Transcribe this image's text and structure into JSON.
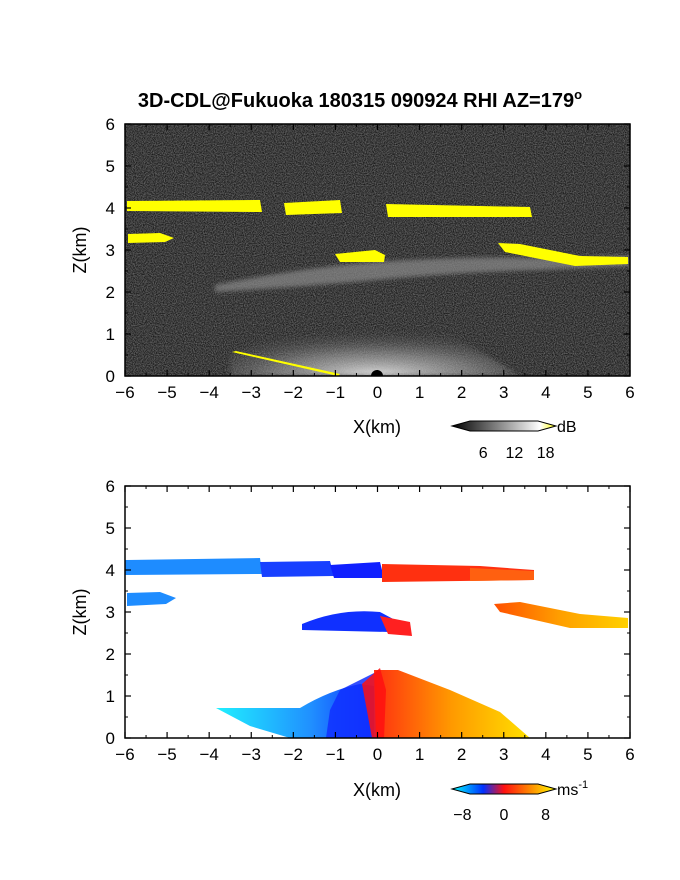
{
  "figure": {
    "title": "3D-CDL@Fukuoka 180315 090924 RHI AZ=179",
    "title_degree": "o"
  },
  "chart_data": [
    {
      "type": "heatmap",
      "panel": "top",
      "quantity": "backscatter intensity",
      "xlabel": "X(km)",
      "ylabel": "Z(km)",
      "xlim": [
        -6,
        6
      ],
      "ylim": [
        0,
        6
      ],
      "xticks": [
        "-6",
        "-5",
        "-4",
        "-3",
        "-2",
        "-1",
        "0",
        "1",
        "2",
        "3",
        "4",
        "5",
        "6"
      ],
      "yticks": [
        "0",
        "1",
        "2",
        "3",
        "4",
        "5",
        "6"
      ],
      "background_color": "#161616",
      "colorbar": {
        "unit": "dB",
        "ticks": [
          "6",
          "12",
          "18"
        ],
        "range": [
          0,
          20
        ],
        "colors": [
          "#000000",
          "#ffffff",
          "#ffff00"
        ]
      },
      "features": [
        {
          "name": "cloud layer near 4 km (west)",
          "x": [
            -6.0,
            -2.7
          ],
          "z": 4.05,
          "value_db": 19
        },
        {
          "name": "cloud layer near 4 km (middle)",
          "x": [
            -2.2,
            -0.8
          ],
          "z": 4.0,
          "value_db": 19
        },
        {
          "name": "cloud layer near 4 km (east)",
          "x": [
            0.2,
            3.7
          ],
          "z": 3.95,
          "value_db": 19
        },
        {
          "name": "cloud patch near 3.2 km (west)",
          "x": [
            -5.9,
            -5.0
          ],
          "z": 3.2,
          "value_db": 19
        },
        {
          "name": "cloud patch near 2.8 km",
          "x": [
            -1.0,
            0.2
          ],
          "z": 2.8,
          "value_db": 19
        },
        {
          "name": "cloud layer near 3 km (east)",
          "x": [
            2.9,
            6.0
          ],
          "z": 2.85,
          "value_db": 17
        },
        {
          "name": "aerosol layer near 2.5 km",
          "x": [
            -4.0,
            6.0
          ],
          "z": 2.55,
          "value_db": 10
        },
        {
          "name": "boundary layer below 1.5 km",
          "x": [
            -3.5,
            3.0
          ],
          "z_top": 1.5,
          "value_db": 11
        },
        {
          "name": "ground echo",
          "x": [
            -3.5,
            -0.8
          ],
          "z": [
            0.5,
            0.0
          ],
          "value_db": 19
        }
      ]
    },
    {
      "type": "heatmap",
      "panel": "bottom",
      "quantity": "radial velocity",
      "xlabel": "X(km)",
      "ylabel": "Z(km)",
      "xlim": [
        -6,
        6
      ],
      "ylim": [
        0,
        6
      ],
      "xticks": [
        "-6",
        "-5",
        "-4",
        "-3",
        "-2",
        "-1",
        "0",
        "1",
        "2",
        "3",
        "4",
        "5",
        "6"
      ],
      "yticks": [
        "0",
        "1",
        "2",
        "3",
        "4",
        "5",
        "6"
      ],
      "colorbar": {
        "unit": "ms",
        "unit_exponent": "-1",
        "ticks": [
          "-8",
          "0",
          "8"
        ],
        "range": [
          -10,
          10
        ],
        "colors": [
          "#00ffff",
          "#0030ff",
          "#ff1010",
          "#ff8800",
          "#ffff00"
        ]
      },
      "features": [
        {
          "name": "4 km layer (west)",
          "x": [
            -6.0,
            -1.0
          ],
          "z": 4.05,
          "velocity_ms": -6
        },
        {
          "name": "4 km layer (east)",
          "x": [
            0.2,
            3.7
          ],
          "z": 3.95,
          "velocity_ms": 4
        },
        {
          "name": "3.2 km patch (west)",
          "x": [
            -5.9,
            -5.0
          ],
          "z": 3.25,
          "velocity_ms": -7
        },
        {
          "name": "2.8 km patch",
          "x": [
            -1.7,
            0.3
          ],
          "z": 2.8,
          "velocity_ms": -2
        },
        {
          "name": "3 km layer (east)",
          "x": [
            2.8,
            6.0
          ],
          "z": 2.85,
          "velocity_ms": 6
        },
        {
          "name": "boundary layer (west)",
          "x": [
            -3.8,
            -0.2
          ],
          "z_top": 1.2,
          "velocity_ms": -5
        },
        {
          "name": "boundary layer (east)",
          "x": [
            0.0,
            3.5
          ],
          "z_top": 1.6,
          "velocity_ms": 5
        }
      ]
    }
  ]
}
